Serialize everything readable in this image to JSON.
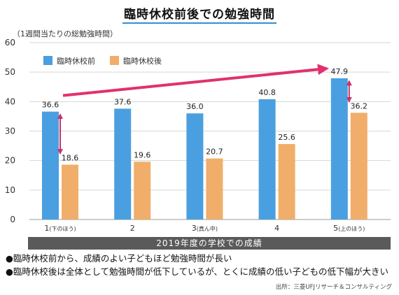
{
  "header": {
    "title": "臨時休校前後での勉強時間",
    "unit_label": "（1週間当たりの総勉強時間）"
  },
  "chart_data": {
    "type": "bar",
    "categories": [
      "1",
      "2",
      "3",
      "4",
      "5"
    ],
    "category_notes": [
      "(下のほう)",
      "",
      "(真ん中)",
      "",
      "(上のほう)"
    ],
    "series": [
      {
        "name": "臨時休校前",
        "color": "#4a9fe0",
        "values": [
          36.6,
          37.6,
          36.0,
          40.8,
          47.9
        ]
      },
      {
        "name": "臨時休校後",
        "color": "#f0ae6a",
        "values": [
          18.6,
          19.6,
          20.7,
          25.6,
          36.2
        ]
      }
    ],
    "data_labels": [
      [
        "36.6",
        "37.6",
        "36.0",
        "40.8",
        "47.9"
      ],
      [
        "18.6",
        "19.6",
        "20.7",
        "25.6",
        "36.2"
      ]
    ],
    "y_ticks": [
      "0",
      "10",
      "20",
      "30",
      "40",
      "50",
      "60"
    ],
    "ylim": [
      0,
      60
    ],
    "grid": true,
    "legend_position": "top-left",
    "xlabel": "2019年度の学校での成績",
    "annotation_colors": {
      "trend_arrow": "#e0316f",
      "gap_arrow": "#c8326b"
    }
  },
  "notes": [
    "●臨時休校前から、成績のよい子どもほど勉強時間が長い",
    "●臨時休校後は全体として勉強時間が低下しているが、とくに成績の低い子どもの低下幅が大きい"
  ],
  "source": "出所：三菱UFJリサーチ＆コンサルティング"
}
